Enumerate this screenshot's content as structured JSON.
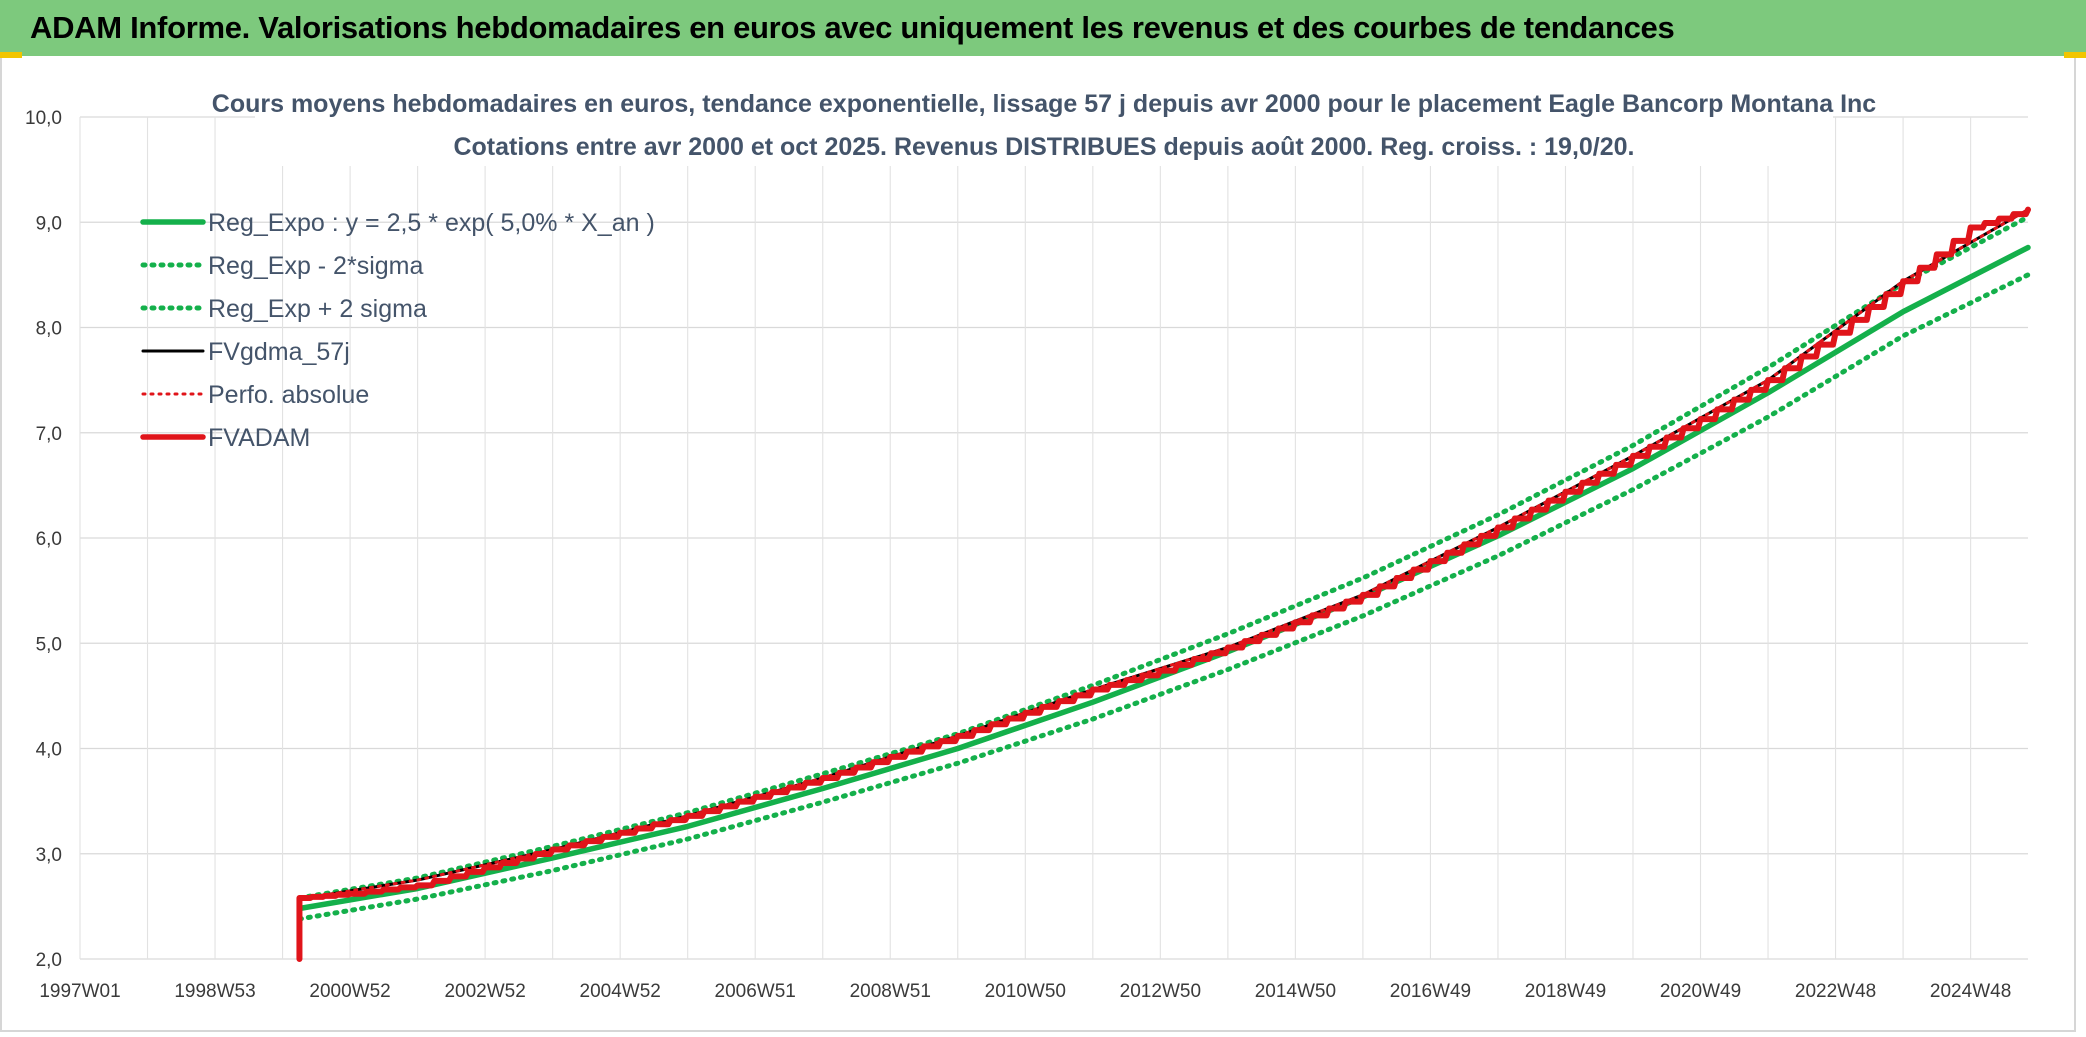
{
  "header": {
    "banner_title": "ADAM Informe. Valorisations hebdomadaires en euros avec uniquement les revenus et des courbes de tendances"
  },
  "colors": {
    "banner_bg": "#7dc97d",
    "accent_yellow": "#f2c500",
    "trend_green": "#14b04b",
    "adam_red": "#e0141a",
    "black": "#000000"
  },
  "chart_data": {
    "type": "line",
    "title": "Cours moyens hebdomadaires en euros, tendance exponentielle, lissage 57 j depuis avr 2000 pour le placement Eagle Bancorp Montana Inc",
    "subtitle": "Cotations entre avr 2000 et oct 2025. Revenus DISTRIBUES depuis août 2000. Reg. croiss. : 19,0/20.",
    "xlabel": "",
    "ylabel": "",
    "ylim": [
      2.0,
      10.0
    ],
    "yticks": [
      "2,0",
      "3,0",
      "4,0",
      "5,0",
      "6,0",
      "7,0",
      "8,0",
      "9,0",
      "10,0"
    ],
    "xlim": [
      1997.0,
      2025.85
    ],
    "xticks": [
      {
        "label": "1997W01",
        "year": 1997.0
      },
      {
        "label": "1998W53",
        "year": 1999.0
      },
      {
        "label": "2000W52",
        "year": 2001.0
      },
      {
        "label": "2002W52",
        "year": 2003.0
      },
      {
        "label": "2004W52",
        "year": 2005.0
      },
      {
        "label": "2006W51",
        "year": 2007.0
      },
      {
        "label": "2008W51",
        "year": 2009.0
      },
      {
        "label": "2010W50",
        "year": 2011.0
      },
      {
        "label": "2012W50",
        "year": 2013.0
      },
      {
        "label": "2014W50",
        "year": 2015.0
      },
      {
        "label": "2016W49",
        "year": 2017.0
      },
      {
        "label": "2018W49",
        "year": 2019.0
      },
      {
        "label": "2020W49",
        "year": 2021.0
      },
      {
        "label": "2022W48",
        "year": 2023.0
      },
      {
        "label": "2024W48",
        "year": 2025.0
      }
    ],
    "grid": true,
    "legend_position": "top-left",
    "series": [
      {
        "name": "Reg_Expo : y = 2,5 * exp( 5,0% *  X_an )",
        "color": "#14b04b",
        "style": "solid",
        "x": [
          2000.25,
          2002,
          2004,
          2006,
          2008,
          2010,
          2012,
          2014,
          2016,
          2018,
          2020,
          2022,
          2024,
          2025.85
        ],
        "y": [
          2.48,
          2.67,
          2.96,
          3.26,
          3.62,
          4.0,
          4.44,
          4.92,
          5.44,
          6.02,
          6.66,
          7.38,
          8.15,
          8.76
        ]
      },
      {
        "name": "Reg_Exp - 2*sigma",
        "color": "#14b04b",
        "style": "dotted",
        "x": [
          2000.25,
          2002,
          2004,
          2006,
          2008,
          2010,
          2012,
          2014,
          2016,
          2018,
          2020,
          2022,
          2024,
          2025.85
        ],
        "y": [
          2.38,
          2.57,
          2.84,
          3.14,
          3.49,
          3.86,
          4.28,
          4.75,
          5.26,
          5.83,
          6.46,
          7.15,
          7.92,
          8.5
        ]
      },
      {
        "name": "Reg_Exp + 2 sigma",
        "color": "#14b04b",
        "style": "dotted",
        "x": [
          2000.25,
          2002,
          2004,
          2006,
          2008,
          2010,
          2012,
          2014,
          2016,
          2018,
          2020,
          2022,
          2024,
          2025.85
        ],
        "y": [
          2.58,
          2.77,
          3.07,
          3.39,
          3.76,
          4.14,
          4.6,
          5.09,
          5.62,
          6.22,
          6.88,
          7.62,
          8.42,
          9.05
        ]
      },
      {
        "name": "FVgdma_57j",
        "color": "#000000",
        "style": "solid",
        "x": [
          2000.25,
          2002,
          2004,
          2006,
          2008,
          2010,
          2012,
          2014,
          2016,
          2018,
          2020,
          2022,
          2024,
          2025.85
        ],
        "y": [
          2.57,
          2.75,
          3.04,
          3.36,
          3.72,
          4.12,
          4.56,
          4.96,
          5.46,
          6.1,
          6.78,
          7.5,
          8.44,
          9.12
        ]
      },
      {
        "name": "Perfo. absolue",
        "color": "#e0141a",
        "style": "dotted",
        "x": [
          2000.25,
          2002,
          2004,
          2006,
          2008,
          2010,
          2012,
          2014,
          2016,
          2018,
          2020,
          2022,
          2024,
          2025.85
        ],
        "y": [
          2.57,
          2.75,
          3.04,
          3.36,
          3.72,
          4.12,
          4.56,
          4.96,
          5.46,
          6.1,
          6.78,
          7.5,
          8.44,
          9.12
        ]
      },
      {
        "name": "FVADAM",
        "color": "#e0141a",
        "style": "solid",
        "x": [
          2000.25,
          2000.25,
          2001,
          2002,
          2003,
          2004,
          2005,
          2006,
          2007,
          2008,
          2009,
          2010,
          2011,
          2012,
          2013,
          2014,
          2015,
          2016,
          2017,
          2018,
          2019,
          2020,
          2021,
          2022,
          2023,
          2024,
          2025,
          2025.85
        ],
        "y": [
          2.0,
          2.58,
          2.62,
          2.7,
          2.87,
          3.04,
          3.2,
          3.36,
          3.54,
          3.72,
          3.92,
          4.12,
          4.34,
          4.56,
          4.74,
          4.96,
          5.2,
          5.46,
          5.78,
          6.1,
          6.44,
          6.78,
          7.13,
          7.5,
          7.95,
          8.44,
          8.95,
          9.12
        ]
      }
    ]
  }
}
